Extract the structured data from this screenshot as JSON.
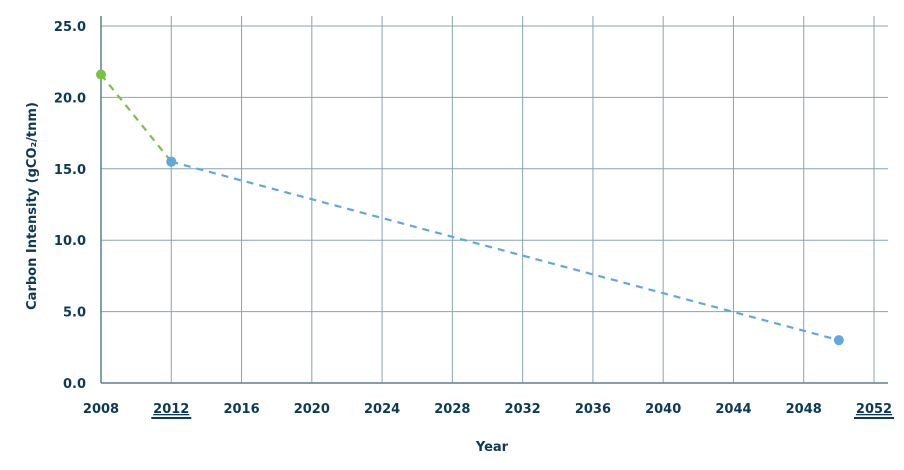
{
  "chart_data": {
    "type": "line",
    "title": "",
    "xlabel": "Year",
    "ylabel": "Carbon Intensity (gCO₂/tnm)",
    "xlim": [
      2008,
      2052
    ],
    "ylim": [
      0,
      25
    ],
    "grid": true,
    "x_ticks": [
      2008,
      2012,
      2016,
      2020,
      2024,
      2028,
      2032,
      2036,
      2040,
      2044,
      2048,
      2052
    ],
    "x_tick_labels": [
      "2008",
      "2012",
      "2016",
      "2020",
      "2024",
      "2028",
      "2032",
      "2036",
      "2040",
      "2044",
      "2048",
      "2052"
    ],
    "x_tick_emphasized": [
      "2012",
      "2052"
    ],
    "y_ticks": [
      0,
      5,
      10,
      15,
      20,
      25
    ],
    "y_tick_labels": [
      "0.0",
      "5.0",
      "10.0",
      "15.0",
      "20.0",
      "25.0"
    ],
    "series": [
      {
        "color": "#7cc242",
        "dash": true,
        "x": [
          2008,
          2012
        ],
        "y": [
          21.6,
          15.5
        ]
      },
      {
        "color": "#5fa8e0",
        "dash": true,
        "x": [
          2012,
          2050
        ],
        "y": [
          15.5,
          3.0
        ]
      }
    ],
    "colors": {
      "grid": "#8aa4b2",
      "axis": "#5d7f90",
      "text": "#0b3a55"
    }
  }
}
